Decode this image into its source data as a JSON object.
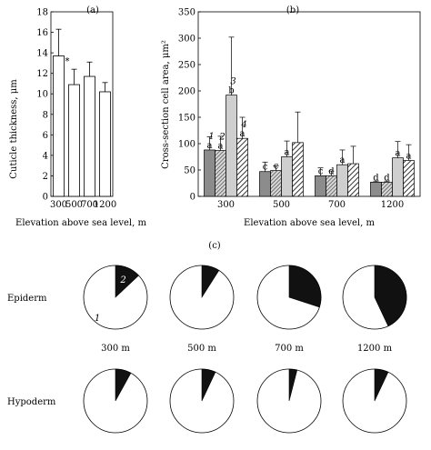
{
  "chart_data": [
    {
      "id": "a",
      "type": "bar",
      "panel_label": "(a)",
      "categories": [
        "300",
        "500",
        "700",
        "1200"
      ],
      "values": [
        13.7,
        10.9,
        11.7,
        10.2
      ],
      "errors": [
        2.6,
        1.5,
        1.4,
        0.9
      ],
      "annotations": [
        "*",
        "",
        "",
        ""
      ],
      "xlabel": "Elevation above sea level, m",
      "ylabel": "Cuticle thickness, μm",
      "ylim": [
        0,
        18
      ],
      "yticks": [
        0,
        2,
        4,
        6,
        8,
        10,
        12,
        14,
        16,
        18
      ]
    },
    {
      "id": "b",
      "type": "bar",
      "panel_label": "(b)",
      "categories": [
        "300",
        "500",
        "700",
        "1200"
      ],
      "series": [
        {
          "name": "1",
          "color": "#8a8a8a",
          "pattern": "solid-dark",
          "values": [
            88,
            47,
            39,
            27
          ],
          "errors": [
            25,
            18,
            15,
            2
          ],
          "labels": [
            "a",
            "c",
            "c",
            "d"
          ]
        },
        {
          "name": "2",
          "color": "#bfbfbf",
          "pattern": "hatch-dense",
          "values": [
            87,
            49,
            39,
            27
          ],
          "errors": [
            27,
            9,
            9,
            2
          ],
          "labels": [
            "a",
            "c",
            "d",
            "d"
          ]
        },
        {
          "name": "3",
          "color": "#d4d4d4",
          "pattern": "solid-light",
          "values": [
            192,
            75,
            60,
            73
          ],
          "errors": [
            110,
            30,
            28,
            31
          ],
          "labels": [
            "b",
            "a",
            "a",
            "a"
          ]
        },
        {
          "name": "4",
          "color": "#9a9a9a",
          "pattern": "hatch",
          "values": [
            110,
            102,
            62,
            68
          ],
          "errors": [
            40,
            58,
            33,
            30
          ],
          "labels": [
            "a",
            "",
            "",
            "a"
          ]
        }
      ],
      "xlabel": "Elevation above sea level, m",
      "ylabel": "Cross-section cell area, μm²",
      "ylim": [
        0,
        350
      ],
      "yticks": [
        0,
        50,
        100,
        150,
        200,
        250,
        300,
        350
      ]
    },
    {
      "id": "c",
      "type": "pie",
      "panel_label": "(c)",
      "rows": [
        "Epiderm",
        "Hypoderm"
      ],
      "columns": [
        "300 m",
        "500 m",
        "700 m",
        "1200 m"
      ],
      "slice_labels": [
        "1",
        "2"
      ],
      "fractions": {
        "Epiderm": [
          0.13,
          0.09,
          0.3,
          0.43
        ],
        "Hypoderm": [
          0.08,
          0.07,
          0.04,
          0.07
        ]
      }
    }
  ]
}
